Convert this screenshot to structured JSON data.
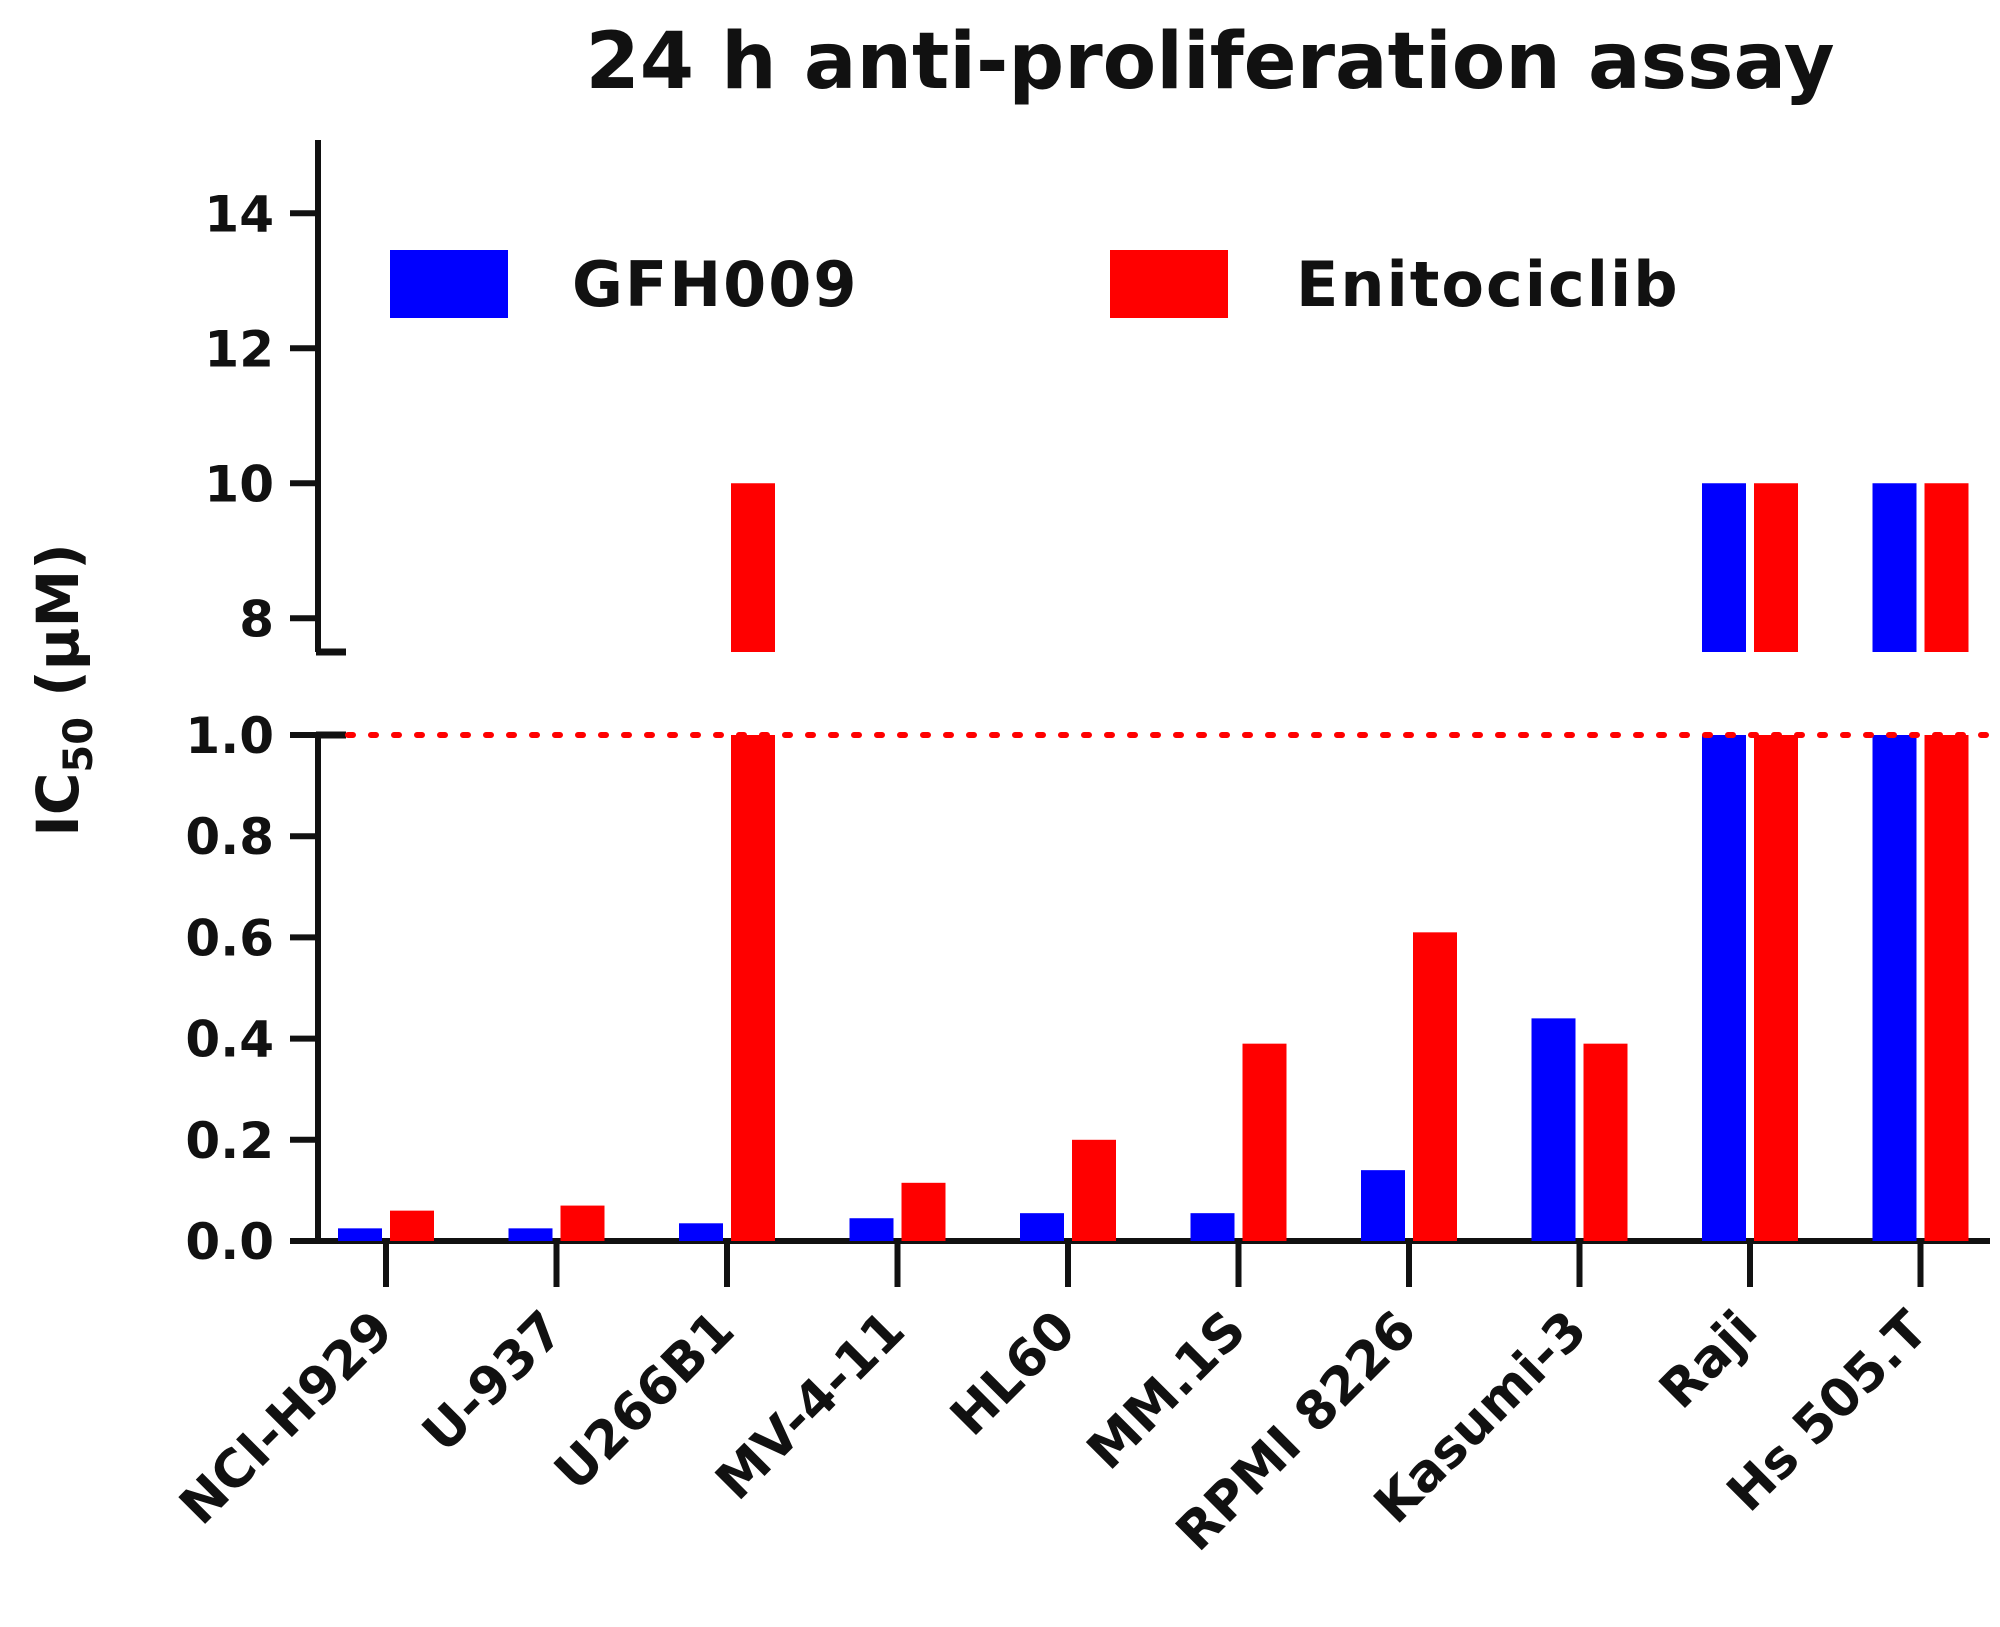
{
  "chart_data": {
    "type": "bar",
    "title": "24 h anti-proliferation assay",
    "ylabel": {
      "main": "IC",
      "sub": "50",
      "rest": " (μM)"
    },
    "xlabel": "",
    "categories": [
      "NCI-H929",
      "U-937",
      "U266B1",
      "MV-4-11",
      "HL60",
      "MM.1S",
      "RPMI 8226",
      "Kasumi-3",
      "Raji",
      "Hs 505.T"
    ],
    "series": [
      {
        "name": "GFH009",
        "color": "#0000ff",
        "values": [
          0.025,
          0.025,
          0.035,
          0.045,
          0.055,
          0.055,
          0.14,
          0.44,
          10,
          10
        ]
      },
      {
        "name": "Enitociclib",
        "color": "#ff0000",
        "values": [
          0.06,
          0.07,
          10,
          0.115,
          0.2,
          0.39,
          0.61,
          0.39,
          10,
          10
        ]
      }
    ],
    "y_axis": {
      "broken": true,
      "lower_segment": {
        "range": [
          0,
          1.0
        ],
        "ticks": [
          "0.0",
          "0.2",
          "0.4",
          "0.6",
          "0.8",
          "1.0"
        ]
      },
      "upper_segment": {
        "range": [
          7.5,
          15
        ],
        "ticks": [
          "8",
          "10",
          "12",
          "14"
        ]
      }
    },
    "reference_line": {
      "y": 1.0,
      "style": "dotted",
      "color": "#ff0000"
    },
    "legend": {
      "placement": "top",
      "orientation": "horizontal"
    },
    "grid": false
  }
}
